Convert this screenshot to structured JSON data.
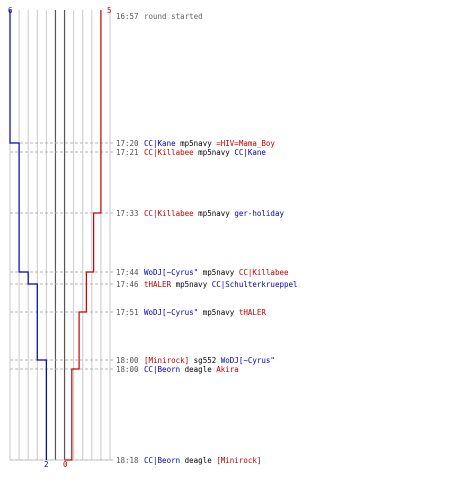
{
  "colors": {
    "blue": "#0000b0",
    "red": "#c00000",
    "grid": "#c8c8c8",
    "center": "#555555",
    "dash": "#b4b4b4",
    "text": "#000000",
    "time": "#555555"
  },
  "scale": {
    "min": 0,
    "max": 6
  },
  "labels": {
    "blue_start": "6",
    "red_start": "5",
    "blue_end": "2",
    "red_end": "0"
  },
  "score_steps": {
    "blue": [
      6,
      5,
      5,
      5,
      4,
      3,
      3,
      2,
      2,
      2
    ],
    "red": [
      5,
      5,
      5,
      4,
      3,
      3,
      2,
      2,
      1,
      0
    ]
  },
  "events": [
    {
      "time": "16:57",
      "parts": [
        {
          "text": "round started",
          "color": "gray"
        }
      ]
    },
    {
      "time": "17:20",
      "parts": [
        {
          "text": "CC|Kane",
          "color": "blue"
        },
        {
          "text": " mp5navy ",
          "color": "blk"
        },
        {
          "text": "=HIV=Mama_Boy",
          "color": "red"
        }
      ]
    },
    {
      "time": "17:21",
      "parts": [
        {
          "text": "CC|Killabee",
          "color": "red"
        },
        {
          "text": " mp5navy ",
          "color": "blk"
        },
        {
          "text": "CC|Kane",
          "color": "blue"
        }
      ]
    },
    {
      "time": "17:33",
      "parts": [
        {
          "text": "CC|Killabee",
          "color": "red"
        },
        {
          "text": " mp5navy ",
          "color": "blk"
        },
        {
          "text": "ger-holiday",
          "color": "blue"
        }
      ]
    },
    {
      "time": "17:44",
      "parts": [
        {
          "text": "WoDJ[~Cyrus\"",
          "color": "blue"
        },
        {
          "text": " mp5navy ",
          "color": "blk"
        },
        {
          "text": "CC|Killabee",
          "color": "red"
        }
      ]
    },
    {
      "time": "17:46",
      "parts": [
        {
          "text": "tHALER",
          "color": "red"
        },
        {
          "text": " mp5navy ",
          "color": "blk"
        },
        {
          "text": "CC|Schulterkrueppel",
          "color": "blue"
        }
      ]
    },
    {
      "time": "17:51",
      "parts": [
        {
          "text": "WoDJ[~Cyrus\"",
          "color": "blue"
        },
        {
          "text": " mp5navy ",
          "color": "blk"
        },
        {
          "text": "tHALER",
          "color": "red"
        }
      ]
    },
    {
      "time": "18:00",
      "parts": [
        {
          "text": "[Minirock]",
          "color": "red"
        },
        {
          "text": " sg552 ",
          "color": "blk"
        },
        {
          "text": "WoDJ[~Cyrus\"",
          "color": "blue"
        }
      ]
    },
    {
      "time": "18:00",
      "parts": [
        {
          "text": "CC|Beorn",
          "color": "blue"
        },
        {
          "text": " deagle ",
          "color": "blk"
        },
        {
          "text": "Akira",
          "color": "red"
        }
      ]
    },
    {
      "time": "18:18",
      "parts": [
        {
          "text": "CC|Beorn",
          "color": "blue"
        },
        {
          "text": " deagle ",
          "color": "blk"
        },
        {
          "text": "[Minirock]",
          "color": "red"
        }
      ]
    }
  ]
}
